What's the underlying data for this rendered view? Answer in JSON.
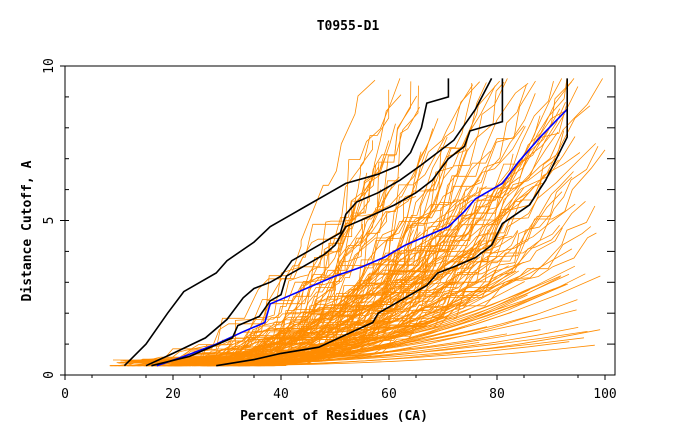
{
  "chart_data": {
    "type": "line",
    "title": "T0955-D1",
    "xlabel": "Percent of Residues (CA)",
    "ylabel": "Distance Cutoff, A",
    "xlim": [
      0,
      100
    ],
    "ylim": [
      0,
      10
    ],
    "x_ticks": [
      "0",
      "20",
      "40",
      "60",
      "80",
      "100"
    ],
    "y_ticks": [
      "0",
      "5",
      "10"
    ],
    "colors": {
      "background_models": "#ff8c00",
      "highlight_black": "#000000",
      "highlight_blue": "#0000ff",
      "axes": "#000000"
    },
    "series": [
      {
        "name": "black-model-1",
        "color": "#000000",
        "x": [
          11,
          15,
          19,
          22,
          28,
          30,
          35,
          38,
          42,
          45,
          49,
          52,
          58,
          62,
          64,
          66,
          67,
          71,
          71
        ],
        "y": [
          0.3,
          1.0,
          2.0,
          2.7,
          3.3,
          3.7,
          4.3,
          4.8,
          5.2,
          5.5,
          5.9,
          6.2,
          6.5,
          6.8,
          7.2,
          8.0,
          8.8,
          9.0,
          9.6
        ]
      },
      {
        "name": "black-model-2",
        "color": "#000000",
        "x": [
          15,
          20,
          26,
          30,
          33,
          35,
          38,
          40,
          42,
          45,
          48,
          51,
          52,
          54,
          58,
          62,
          66,
          72,
          76,
          79
        ],
        "y": [
          0.3,
          0.7,
          1.2,
          1.8,
          2.5,
          2.8,
          3.0,
          3.2,
          3.7,
          4.0,
          4.3,
          4.6,
          5.2,
          5.6,
          5.9,
          6.3,
          6.8,
          7.6,
          8.6,
          9.6
        ]
      },
      {
        "name": "blue-model",
        "color": "#0000ff",
        "x": [
          17,
          22,
          28,
          33,
          37,
          38,
          42,
          46,
          50,
          55,
          59,
          63,
          67,
          71,
          74,
          76,
          81,
          84,
          88,
          93
        ],
        "y": [
          0.3,
          0.6,
          1.0,
          1.4,
          1.7,
          2.3,
          2.6,
          2.9,
          3.2,
          3.5,
          3.8,
          4.2,
          4.5,
          4.8,
          5.3,
          5.7,
          6.2,
          6.9,
          7.7,
          8.6
        ]
      },
      {
        "name": "black-model-3",
        "color": "#000000",
        "x": [
          16,
          23,
          31,
          32,
          36,
          38,
          40,
          41,
          44,
          48,
          50,
          52,
          56,
          61,
          65,
          68,
          71,
          74,
          75,
          81,
          81
        ],
        "y": [
          0.3,
          0.6,
          1.2,
          1.6,
          1.9,
          2.4,
          2.6,
          3.2,
          3.5,
          3.9,
          4.2,
          4.8,
          5.1,
          5.5,
          5.9,
          6.3,
          7.0,
          7.4,
          7.9,
          8.2,
          9.6
        ]
      },
      {
        "name": "black-model-4",
        "color": "#000000",
        "x": [
          28,
          35,
          40,
          47,
          52,
          57,
          58,
          63,
          67,
          69,
          72,
          76,
          79,
          81,
          86,
          89,
          93,
          93
        ],
        "y": [
          0.3,
          0.5,
          0.7,
          0.9,
          1.3,
          1.7,
          2.0,
          2.5,
          2.9,
          3.3,
          3.5,
          3.8,
          4.2,
          4.9,
          5.5,
          6.3,
          7.7,
          9.6
        ]
      }
    ]
  }
}
